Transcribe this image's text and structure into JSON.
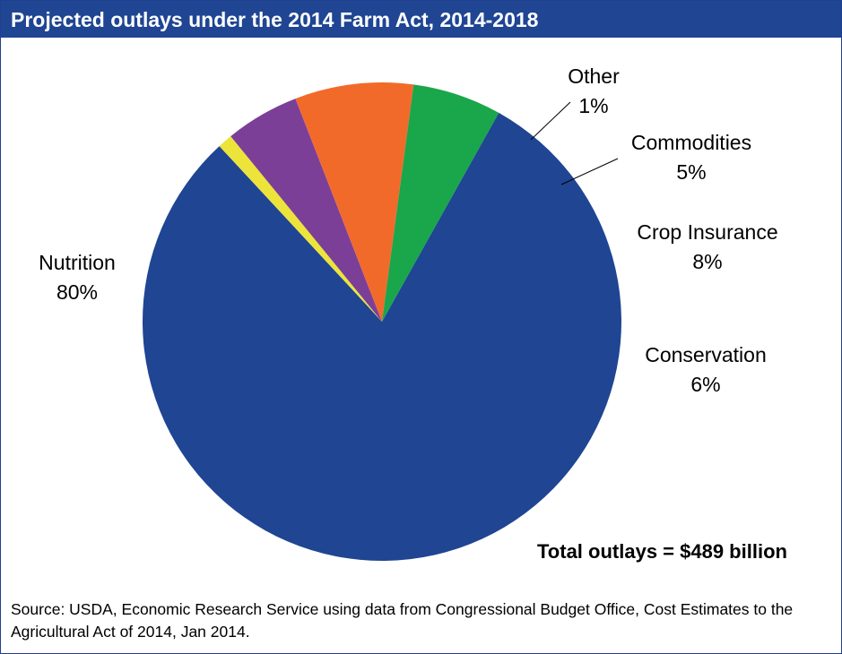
{
  "title": "Projected outlays under the 2014 Farm Act, 2014-2018",
  "total": "Total outlays = $489 billion",
  "source": "Source: USDA, Economic Research Service using data from Congressional Budget Office, Cost Estimates to the Agricultural Act of 2014, Jan 2014.",
  "chart_data": {
    "type": "pie",
    "title": "Projected outlays under the 2014 Farm Act, 2014-2018",
    "slices": [
      {
        "name": "Nutrition",
        "value": 80,
        "label": "80%",
        "color": "#1f4593"
      },
      {
        "name": "Other",
        "value": 1,
        "label": "1%",
        "color": "#ece43a"
      },
      {
        "name": "Commodities",
        "value": 5,
        "label": "5%",
        "color": "#7b3f98"
      },
      {
        "name": "Crop Insurance",
        "value": 8,
        "label": "8%",
        "color": "#f26a2a"
      },
      {
        "name": "Conservation",
        "value": 6,
        "label": "6%",
        "color": "#1aa64b"
      }
    ],
    "legend": "none"
  }
}
